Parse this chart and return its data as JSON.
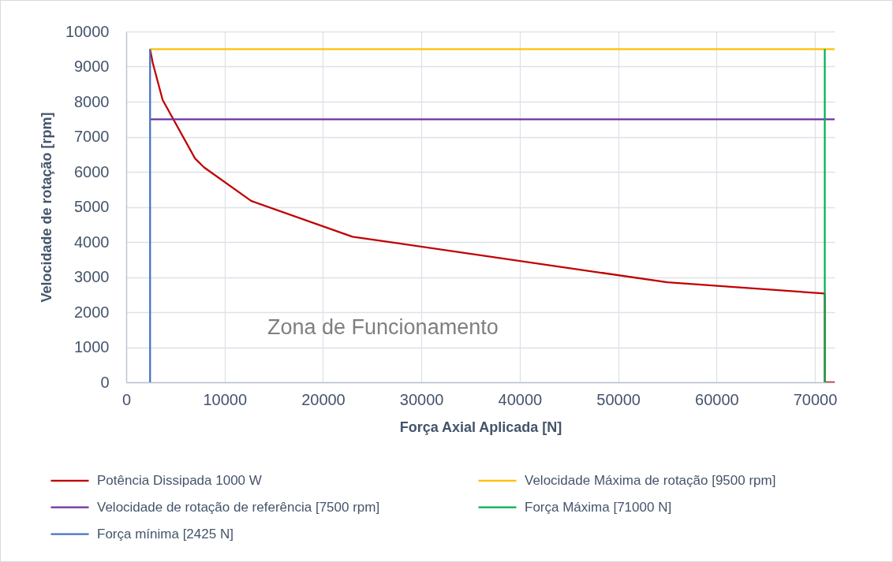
{
  "chart_data": {
    "type": "line",
    "xlabel": "Força Axial Aplicada [N]",
    "ylabel": "Velocidade de rotação [rpm]",
    "annotations": [
      "Zona de Funcionamento"
    ],
    "series": [
      {
        "name": "Potência Dissipada 1000 W",
        "color": "#c00000",
        "x": [
          2425,
          2700,
          3700,
          7000,
          7900,
          12700,
          23000,
          55000,
          71000,
          71000,
          72000
        ],
        "values": [
          9500,
          9100,
          8050,
          6380,
          6130,
          5170,
          4150,
          2850,
          2530,
          0,
          0
        ]
      },
      {
        "name": "Velocidade Máxima de rotação [9500 rpm]",
        "color": "#ffc000",
        "x": [
          2425,
          72000
        ],
        "values": [
          9500,
          9500
        ]
      },
      {
        "name": "Velocidade de rotação de referência [7500 rpm]",
        "color": "#7030a0",
        "x": [
          2425,
          72000
        ],
        "values": [
          7500,
          7500
        ]
      },
      {
        "name": "Força Máxima [71000 N]",
        "color": "#00b050",
        "x": [
          71000,
          71000
        ],
        "values": [
          0,
          9500
        ]
      },
      {
        "name": "Força mínima [2425 N]",
        "color": "#4472c4",
        "x": [
          2425,
          2425
        ],
        "values": [
          0,
          9500
        ]
      }
    ],
    "xlim": [
      0,
      72000
    ],
    "xticks": [
      0,
      10000,
      20000,
      30000,
      40000,
      50000,
      60000,
      70000
    ],
    "ylim": [
      0,
      10000
    ],
    "yticks": [
      0,
      1000,
      2000,
      3000,
      4000,
      5000,
      6000,
      7000,
      8000,
      9000,
      10000
    ],
    "grid": true,
    "legend": "bottom",
    "marker": "none",
    "line_style": "solid"
  }
}
